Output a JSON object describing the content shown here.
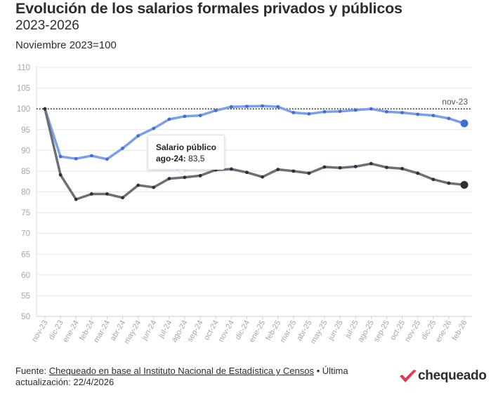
{
  "header": {
    "title": "Evolución de los salarios formales privados y públicos",
    "subtitle": "2023-2026",
    "note": "Noviembre 2023=100"
  },
  "tooltip": {
    "series": "Salario público",
    "date": "ago-24:",
    "value": "83,5"
  },
  "footer": {
    "prefix": "Fuente:",
    "source": "Chequeado en base al Instituto Nacional de Estadística y Censos",
    "separator": "•",
    "update": "Última actualización: 22/4/2026"
  },
  "logo": {
    "text": "chequeado",
    "mark_color": "#e2394d"
  },
  "colors": {
    "light_series": "#7b9fe8",
    "light_marker": "#3d6fd9",
    "dark_series": "#6b7077",
    "dark_marker": "#2c3138",
    "reference": "#1f2126",
    "grid": "#e6e6e6"
  },
  "chart_data": {
    "type": "line",
    "title": "Evolución de los salarios formales privados y públicos",
    "subtitle": "2023-2026",
    "ylabel": "",
    "xlabel": "",
    "ylim": [
      50,
      110
    ],
    "yticks": [
      50,
      55,
      60,
      65,
      70,
      75,
      80,
      85,
      90,
      95,
      100,
      105,
      110
    ],
    "grid": true,
    "categories": [
      "nov-23",
      "dic-23",
      "ene-24",
      "feb-24",
      "mar-24",
      "abr-24",
      "may-24",
      "jun-24",
      "jul-24",
      "ago-24",
      "sep-24",
      "oct-24",
      "nov-24",
      "dic-24",
      "ene-25",
      "feb-25",
      "mar-25",
      "abr-25",
      "may-25",
      "jun-25",
      "jul-25",
      "ago-25",
      "sep-25",
      "oct-25",
      "nov-25",
      "dic-25",
      "ene-26",
      "feb-26"
    ],
    "reference_line": {
      "value": 100,
      "label": "nov-23"
    },
    "series": [
      {
        "color": "#7b9fe8",
        "values": [
          100,
          88.5,
          88,
          88.7,
          87.9,
          90.5,
          93.5,
          95.3,
          97.5,
          98.2,
          98.4,
          99.6,
          100.5,
          100.6,
          100.7,
          100.5,
          99.1,
          98.8,
          99.3,
          99.4,
          99.7,
          100,
          99.3,
          99.1,
          98.7,
          98.4,
          97.7,
          96.5
        ]
      },
      {
        "name": "Salario público",
        "color": "#6b7077",
        "values": [
          100,
          84.1,
          78.2,
          79.5,
          79.5,
          78.6,
          81.6,
          81.1,
          83.2,
          83.5,
          83.9,
          85.3,
          85.5,
          84.7,
          83.6,
          85.4,
          85.0,
          84.5,
          86.0,
          85.8,
          86.1,
          86.8,
          85.9,
          85.6,
          84.5,
          83.0,
          82.1,
          81.7
        ]
      }
    ]
  }
}
